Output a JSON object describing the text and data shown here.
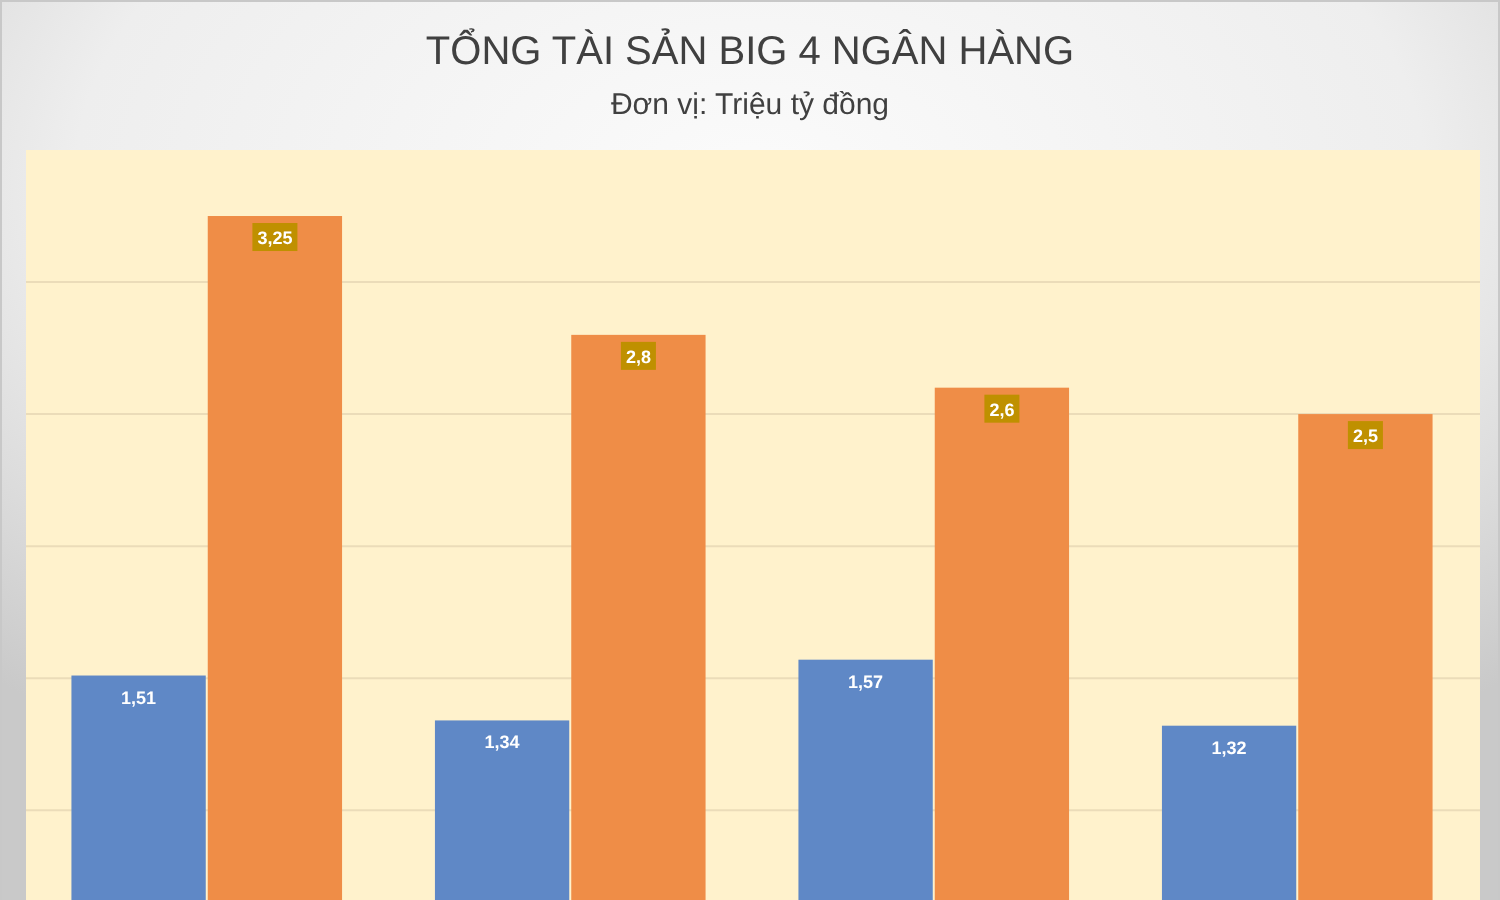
{
  "chart_data": {
    "type": "bar",
    "title": "TỔNG TÀI SẢN BIG 4 NGÂN HÀNG",
    "subtitle": "Đơn vị: Triệu tỷ đồng",
    "categories": [
      null,
      null,
      null,
      null
    ],
    "series": [
      {
        "color": "#5f88c6",
        "values": [
          1.51,
          1.34,
          1.57,
          1.32
        ],
        "value_labels": [
          "1,51",
          "1,34",
          "1,57",
          "1,32"
        ]
      },
      {
        "color": "#ef8d47",
        "values": [
          3.25,
          2.8,
          2.6,
          2.5
        ],
        "value_labels": [
          "3,25",
          "2,8",
          "2,6",
          "2,5"
        ]
      }
    ],
    "ylim": [
      0.66,
      3.5
    ],
    "yticks": [
      {
        "value": 1,
        "label": null
      },
      {
        "value": 1.5,
        "label": null
      },
      {
        "value": 2,
        "label": null
      },
      {
        "value": 2.5,
        "label": null
      },
      {
        "value": 3,
        "label": null
      }
    ],
    "grid": "y"
  }
}
